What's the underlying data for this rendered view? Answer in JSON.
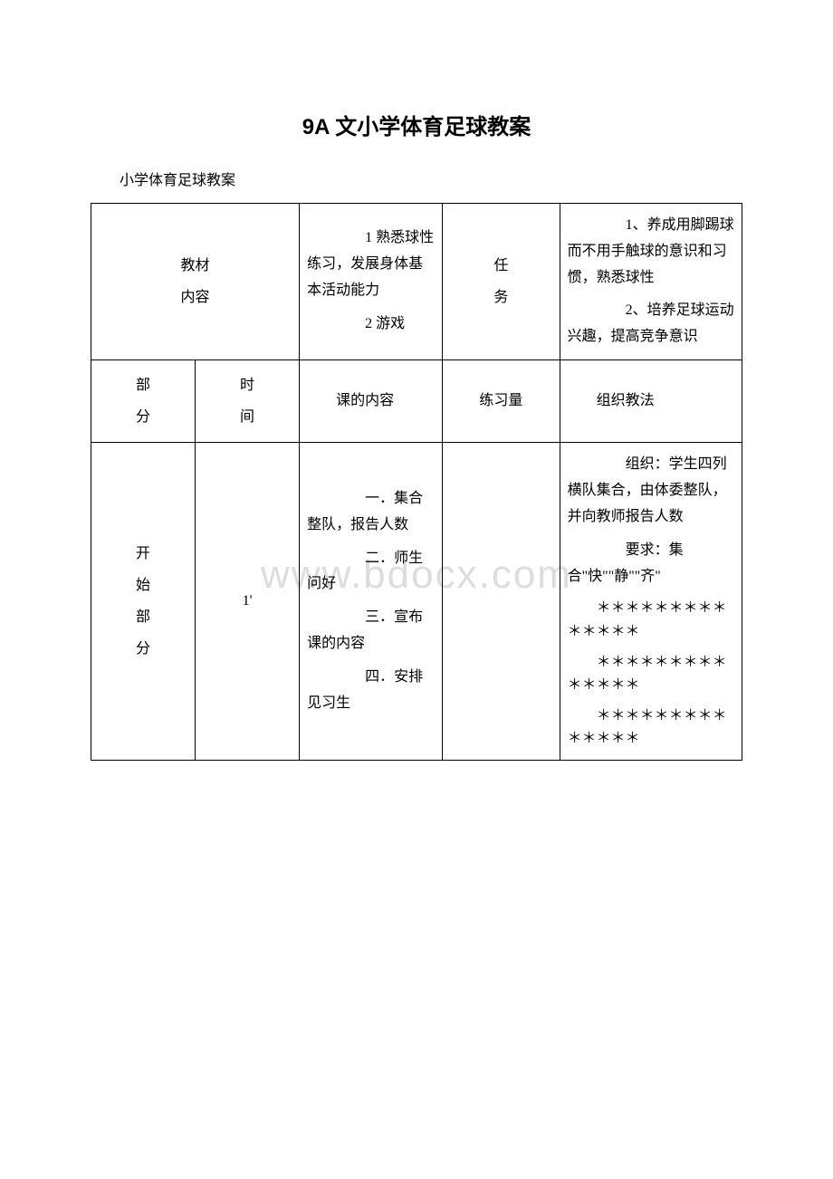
{
  "title": "9A 文小学体育足球教案",
  "subtitle": "小学体育足球教案",
  "watermark": "www.bdocx.com",
  "row1": {
    "label_line1": "教材",
    "label_line2": "内容",
    "content": "　　1 熟悉球性练习，发展身体基本活动能力\n　　2 游戏",
    "task_line1": "任",
    "task_line2": "务",
    "task_content_1": "　　1、养成用脚踢球而不用手触球的意识和习惯，熟悉球性",
    "task_content_2": "　　2、培养足球运动兴趣，提高竞争意识"
  },
  "row2": {
    "part_line1": "部",
    "part_line2": "分",
    "time_line1": "时",
    "time_line2": "间",
    "content": "　　课的内容",
    "practice": "练习量",
    "method": "　　组织教法"
  },
  "row3": {
    "part": "开\n始\n部\n分",
    "time": "1'",
    "content_1": "　　一．集合整队，报告人数",
    "content_2": "　　二．师生问好",
    "content_3": "　　三．宣布课的内容",
    "content_4": "　　四．安排见习生",
    "method_1": "　　组织：学生四列横队集合，由体委整队，并向教师报告人数",
    "method_2": "　　要求：集合\"快\"\"静\"\"齐\"",
    "stars_1": "＊＊＊＊＊＊＊＊＊＊＊＊＊＊",
    "stars_2": "＊＊＊＊＊＊＊＊＊＊＊＊＊＊",
    "stars_3": "＊＊＊＊＊＊＊＊＊＊＊＊＊＊"
  }
}
